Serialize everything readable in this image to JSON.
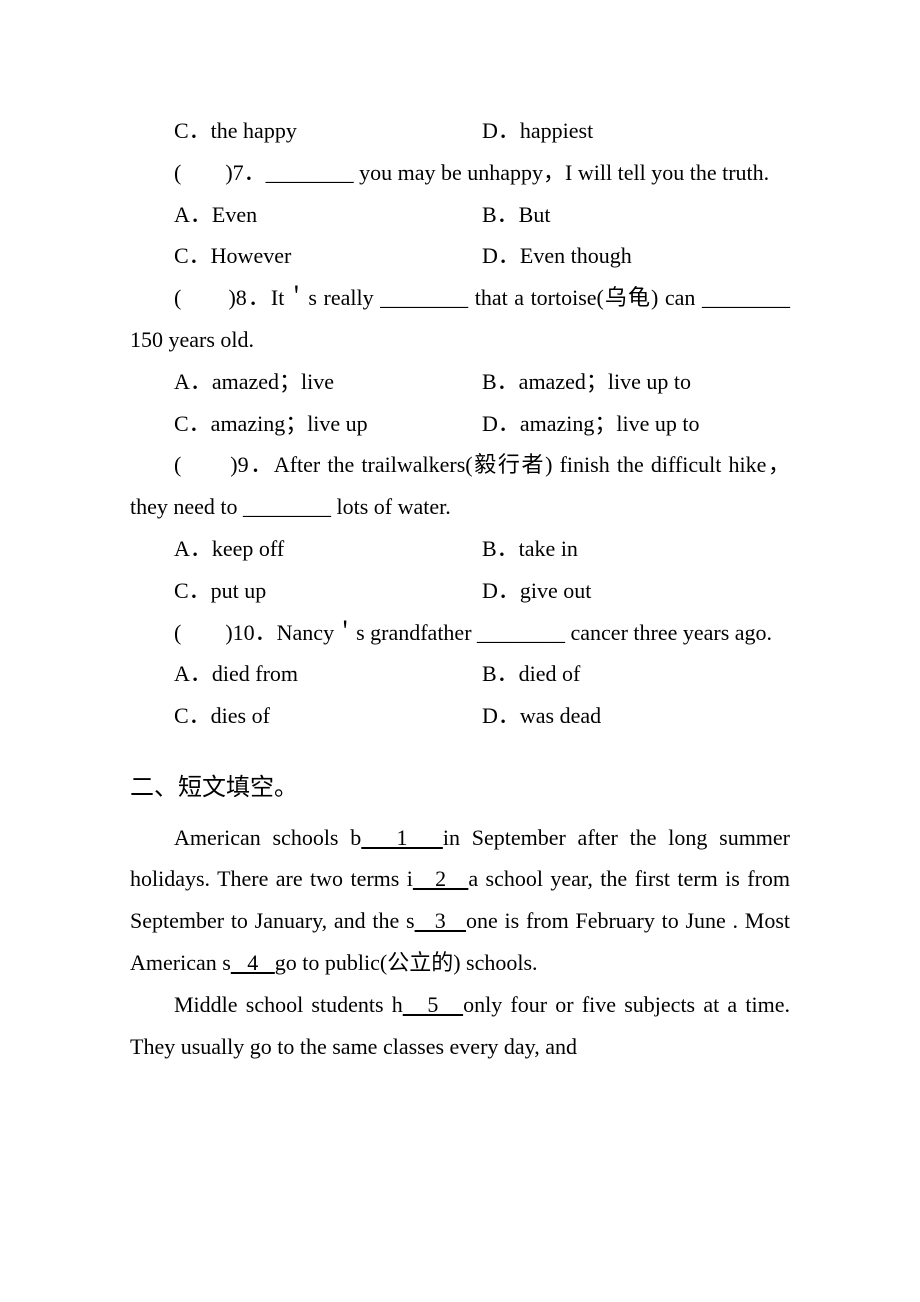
{
  "q6": {
    "optC": "C．the happy",
    "optD": "D．happiest"
  },
  "q7": {
    "stem": "(　　)7．________ you may be unhappy，I will tell you the truth.",
    "optA": "A．Even",
    "optB": "B．But",
    "optC": "C．However",
    "optD": "D．Even though"
  },
  "q8": {
    "stemPart1": "(　　)8．It＇s really ________ that a tortoise(乌龟) can ",
    "stemPart2": "________ 150 years old.",
    "optA": "A．amazed；live",
    "optB": "B．amazed；live up to",
    "optC": "C．amazing；live up",
    "optD": "D．amazing；live up to"
  },
  "q9": {
    "stemPart1": "(　　)9．After the trailwalkers(毅行者) finish the difficult ",
    "stemPart2": "hike，they need to ________ lots of water.",
    "optA": "A．keep off",
    "optB": "B．take in",
    "optC": "C．put up",
    "optD": "D．give out"
  },
  "q10": {
    "stemPart1": "(　　)10．Nancy＇s grandfather ________ cancer three ",
    "stemPart2": "years ago.",
    "optA": "A．died from",
    "optB": "B．died of",
    "optC": "C．dies of",
    "optD": "D．was dead"
  },
  "section2": {
    "title": "二、短文填空。",
    "p1a": "American schools b",
    "b1": "   1   ",
    "p1b": "in September after the long summer holidays. There are two terms i",
    "b2": "   2   ",
    "p1c": "a school year, the first term is from September to January, and the s",
    "b3": "   3   ",
    "p1d": "one is from February to June . Most American s",
    "b4": "   4   ",
    "p1e": "go to public(公立的) schools.",
    "p2a": "Middle school students h",
    "b5": "   5   ",
    "p2b": "only four or five subjects at a time. They usually go to the same classes every day, and"
  }
}
